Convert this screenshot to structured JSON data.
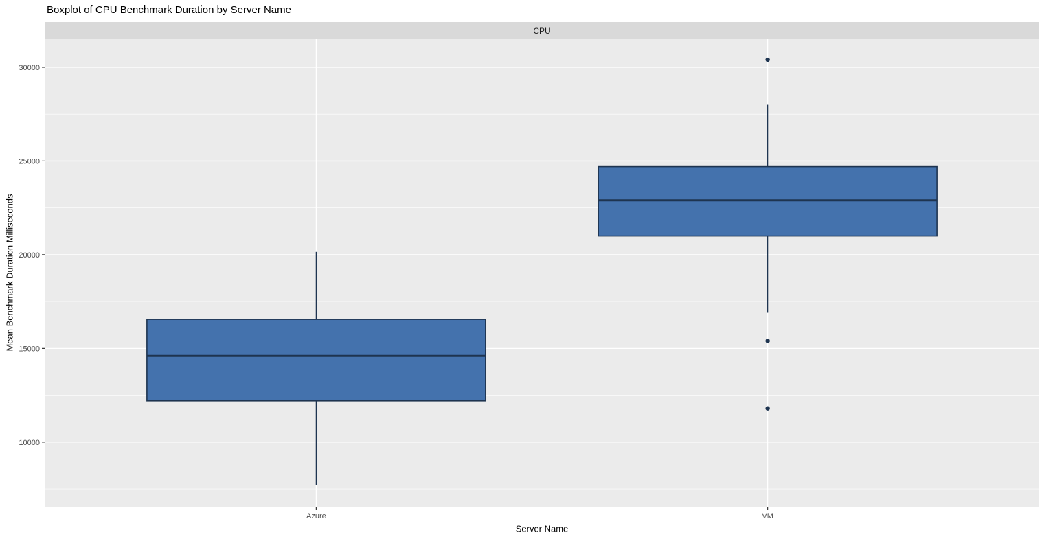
{
  "colors": {
    "box_fill": "#4472ad",
    "box_stroke": "#1e3450",
    "panel_bg": "#ebebeb",
    "strip_bg": "#d9d9d9",
    "grid_major": "#ffffff",
    "grid_minor": "#ffffff",
    "tick_mark": "#333333",
    "tick_text": "#4d4d4d",
    "title_text": "#000000"
  },
  "chart_data": {
    "type": "boxplot",
    "title": "Boxplot of CPU Benchmark Duration by Server Name",
    "facet_label": "CPU",
    "xlabel": "Server Name",
    "ylabel": "Mean Benchmark Duration Milliseconds",
    "categories": [
      "Azure",
      "VM"
    ],
    "series": [
      {
        "name": "Azure",
        "whisker_low": 7700,
        "q1": 12200,
        "median": 14600,
        "q3": 16550,
        "whisker_high": 20150,
        "outliers": []
      },
      {
        "name": "VM",
        "whisker_low": 16900,
        "q1": 21000,
        "median": 22900,
        "q3": 24700,
        "whisker_high": 28000,
        "outliers": [
          30400,
          15400,
          11800
        ]
      }
    ],
    "y_ticks": [
      10000,
      15000,
      20000,
      25000,
      30000
    ],
    "y_minor_ticks": [
      7500,
      12500,
      17500,
      22500,
      27500
    ],
    "ylim": [
      6550,
      31500
    ],
    "grid": true,
    "legend": "none"
  }
}
